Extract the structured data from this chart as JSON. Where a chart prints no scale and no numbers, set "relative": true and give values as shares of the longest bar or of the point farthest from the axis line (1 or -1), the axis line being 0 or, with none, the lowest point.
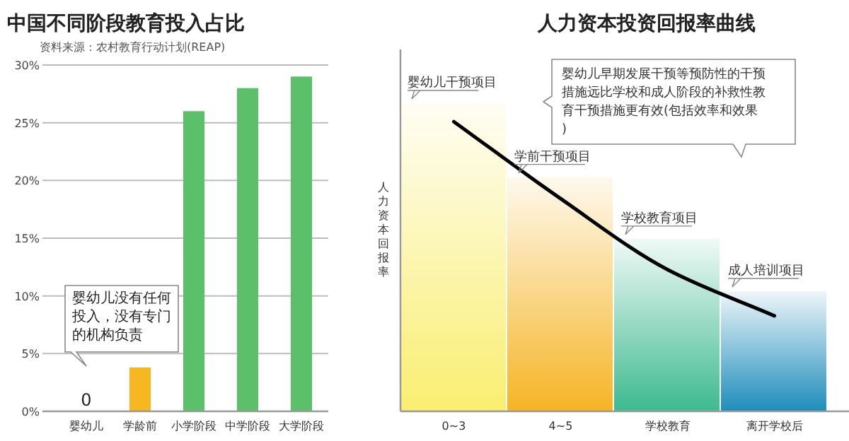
{
  "chart_data": [
    {
      "type": "bar",
      "title": "中国不同阶段教育投入占比",
      "subtitle": "资料来源：农村教育行动计划(REAP)",
      "categories": [
        "婴幼儿",
        "学龄前",
        "小学阶段",
        "中学阶段",
        "大学阶段"
      ],
      "values": [
        0,
        3.8,
        26,
        28,
        29
      ],
      "colors": [
        "#f5b820",
        "#f5b820",
        "#5cbf6a",
        "#5cbf6a",
        "#5cbf6a"
      ],
      "value_labels": [
        "0",
        null,
        null,
        null,
        null
      ],
      "ylim": [
        0,
        30
      ],
      "yticks": [
        {
          "value": 0,
          "label": "0%"
        },
        {
          "value": 5,
          "label": "5%"
        },
        {
          "value": 10,
          "label": "10%"
        },
        {
          "value": 15,
          "label": "15%"
        },
        {
          "value": 20,
          "label": "20%"
        },
        {
          "value": 25,
          "label": "25%"
        },
        {
          "value": 30,
          "label": "30%"
        }
      ],
      "grid": "y",
      "annotations": [
        "婴幼儿没有任何投入，没有专门的机构负责"
      ]
    },
    {
      "type": "bar",
      "title": "人力资本投资回报率曲线",
      "ylabel": "人力资本回报率",
      "relative": true,
      "categories": [
        "0~3",
        "4~5",
        "学校教育",
        "离开学校后"
      ],
      "series": [
        {
          "type": "bar",
          "colors": [
            "#f9ee70",
            "#f5b424",
            "#3dba8f",
            "#1e8cbb"
          ],
          "values": [
            1,
            0.76,
            0.56,
            0.39
          ]
        },
        {
          "type": "line",
          "color": "#000000",
          "values": [
            0.94,
            0.69,
            0.46,
            0.31
          ]
        }
      ],
      "annotations": [
        {
          "text": "婴幼儿干预项目",
          "x": "0~3",
          "y": 1
        },
        {
          "text": "学前干预项目",
          "x": "4~5",
          "y": 0.76
        },
        {
          "text": "学校教育项目",
          "x": "学校教育",
          "y": 0.56
        },
        {
          "text": "成人培训项目",
          "x": "离开学校后",
          "y": 0.39
        },
        "婴幼儿早期发展干预等预防性的干预措施远比学校和成人阶段的补救性教育干预措施更有效(包括效率和效果)"
      ]
    }
  ]
}
